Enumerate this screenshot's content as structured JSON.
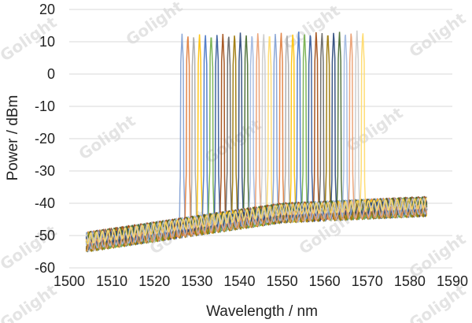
{
  "chart_data": {
    "type": "line",
    "title": "",
    "xlabel": "Wavelength / nm",
    "ylabel": "Power / dBm",
    "xlim": [
      1500,
      1590
    ],
    "ylim": [
      -60,
      20
    ],
    "x_ticks": [
      "1500",
      "1510",
      "1520",
      "1530",
      "1540",
      "1550",
      "1560",
      "1570",
      "1580",
      "1590"
    ],
    "y_ticks": [
      "20",
      "10",
      "0",
      "-10",
      "-20",
      "-30",
      "-40",
      "-50",
      "-60"
    ],
    "grid": "horizontal",
    "legend": "none",
    "channel_count": 32,
    "channel_start_nm": 1526.5,
    "channel_spacing_nm": 1.37,
    "peak_power_dbm_range": [
      12.5,
      13.5
    ],
    "noise_floor_dbm_at_1504": -52,
    "noise_floor_dbm_at_1550": -43,
    "noise_floor_dbm_at_1584": -41,
    "series_colors": [
      "#7f9fd3",
      "#e07b39",
      "#a6a6a6",
      "#ffc000",
      "#4472c4",
      "#70ad47",
      "#2f5597",
      "#9e480e",
      "#636363",
      "#997300",
      "#264478",
      "#43682b",
      "#9fb7e0",
      "#ea9b6c",
      "#c9c9c9",
      "#ffd966"
    ]
  },
  "watermark": "Golight"
}
